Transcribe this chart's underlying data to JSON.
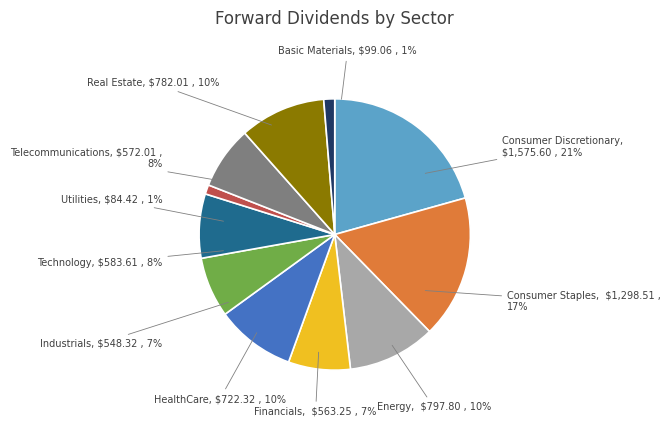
{
  "title": "Forward Dividends by Sector",
  "sectors": [
    "Consumer Discretionary",
    "Consumer Staples",
    "Energy",
    "Financials",
    "HealthCare",
    "Industrials",
    "Technology",
    "Utilities",
    "Telecommunications",
    "Real Estate",
    "Basic Materials"
  ],
  "values": [
    1575.6,
    1298.51,
    797.8,
    563.25,
    722.32,
    548.32,
    583.61,
    84.42,
    572.01,
    782.01,
    99.06
  ],
  "percentages": [
    21,
    17,
    10,
    7,
    10,
    7,
    8,
    1,
    8,
    10,
    1
  ],
  "colors": [
    "#5BA3C9",
    "#E07B39",
    "#A8A8A8",
    "#F0C020",
    "#4472C4",
    "#70AD47",
    "#1F6B8E",
    "#C0504D",
    "#7F7F7F",
    "#8B7A00",
    "#1F3864"
  ],
  "label_texts": [
    "Consumer Discretionary,\n$1,575.60 , 21%",
    "Consumer Staples,  $1,298.51 ,\n17%",
    "Energy,  $797.80 , 10%",
    "Financials,  $563.25 , 7%",
    "HealthCare, $722.32 , 10%",
    "Industrials, $548.32 , 7%",
    "Technology, $583.61 , 8%",
    "Utilities, $84.42 , 1%",
    "Telecommunications, $572.01 ,\n8%",
    "Real Estate, $782.01 , 10%",
    "Basic Materials, $99.06 , 1%"
  ],
  "label_positions": [
    [
      1.28,
      0.38,
      "left"
    ],
    [
      1.28,
      -0.28,
      "left"
    ],
    [
      0.7,
      -1.22,
      "center"
    ],
    [
      -0.1,
      -1.28,
      "center"
    ],
    [
      -0.85,
      -1.1,
      "right"
    ],
    [
      -1.28,
      -0.72,
      "right"
    ],
    [
      -1.28,
      -0.18,
      "right"
    ],
    [
      -1.28,
      0.25,
      "right"
    ],
    [
      -1.28,
      0.52,
      "right"
    ],
    [
      -1.0,
      0.98,
      "right"
    ],
    [
      0.08,
      1.28,
      "center"
    ]
  ]
}
